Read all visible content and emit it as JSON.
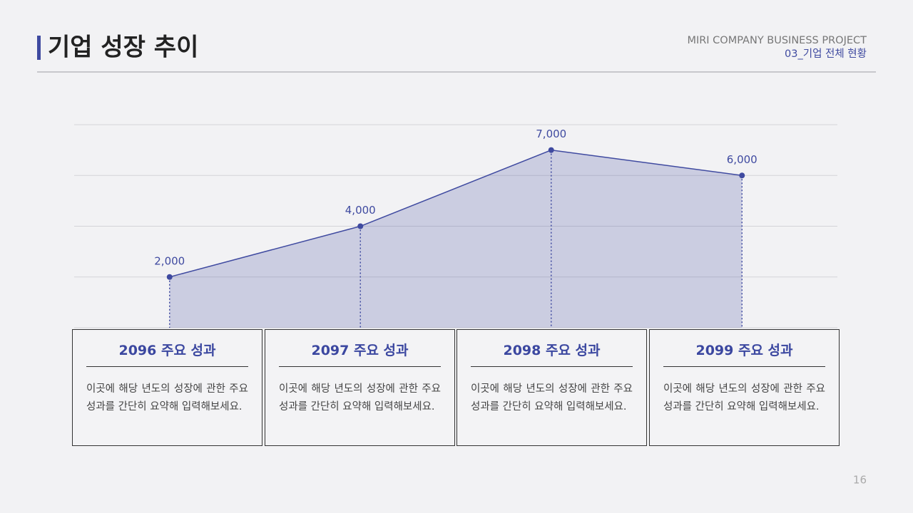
{
  "header": {
    "title": "기업 성장 추이",
    "company": "MIRI COMPANY BUSINESS PROJECT",
    "section": "03_기업 전체 현황"
  },
  "chart_data": {
    "type": "area",
    "categories": [
      null,
      null,
      null,
      null
    ],
    "values": [
      2000,
      4000,
      7000,
      6000
    ],
    "value_labels": [
      "2,000",
      "4,000",
      "7,000",
      "6,000"
    ],
    "color": "#3f4aa0",
    "ylim": [
      0,
      8000
    ],
    "yticks": [
      0,
      2000,
      4000,
      6000,
      8000
    ],
    "grid": true
  },
  "cards": [
    {
      "title": "2096 주요 성과",
      "body": "이곳에 해당 년도의 성장에 관한 주요 성과를 간단히 요약해 입력해보세요."
    },
    {
      "title": "2097 주요 성과",
      "body": "이곳에 해당 년도의 성장에 관한 주요 성과를 간단히 요약해 입력해보세요."
    },
    {
      "title": "2098 주요 성과",
      "body": "이곳에 해당 년도의 성장에 관한 주요 성과를 간단히 요약해 입력해보세요."
    },
    {
      "title": "2099 주요 성과",
      "body": "이곳에 해당 년도의 성장에 관한 주요 성과를 간단히 요약해 입력해보세요."
    }
  ],
  "page_number": "16"
}
